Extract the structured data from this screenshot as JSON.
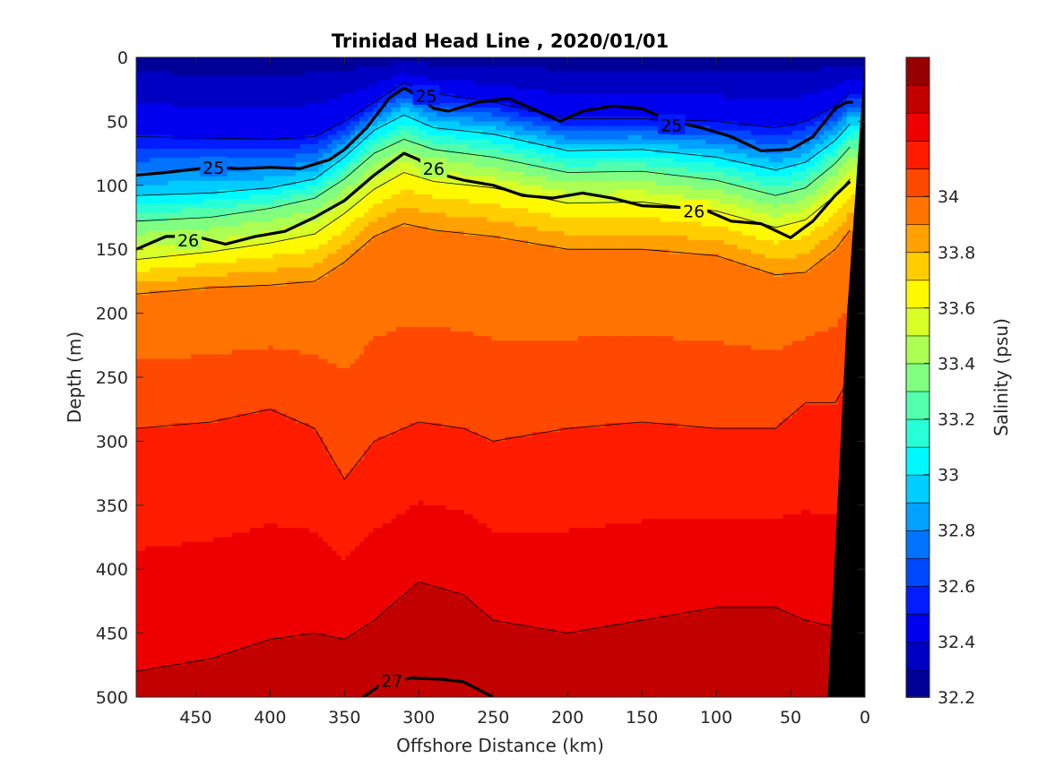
{
  "chart_data": {
    "type": "filled-contour",
    "title": "Trinidad Head Line , 2020/01/01",
    "xlabel": "Offshore Distance (km)",
    "ylabel": "Depth (m)",
    "xlim": [
      490,
      0
    ],
    "ylim": [
      0,
      500
    ],
    "x_reversed": true,
    "y_reversed": true,
    "xticks": [
      "450",
      "400",
      "350",
      "300",
      "250",
      "200",
      "150",
      "100",
      "50",
      "0"
    ],
    "yticks": [
      "0",
      "50",
      "100",
      "150",
      "200",
      "250",
      "300",
      "350",
      "400",
      "450",
      "500"
    ],
    "colorbar": {
      "label": "Salinity (psu)",
      "range": [
        32.2,
        34.5
      ],
      "step": 0.1,
      "ticks": [
        "32.2",
        "32.4",
        "32.6",
        "32.8",
        "33",
        "33.2",
        "33.4",
        "33.6",
        "33.8",
        "34"
      ],
      "colormap": "jet"
    },
    "salinity_isohalines": [
      {
        "level": 32.5,
        "x": [
          490,
          440,
          400,
          370,
          350,
          330,
          310,
          290,
          250,
          200,
          150,
          100,
          60,
          40,
          20,
          10
        ],
        "depth": [
          62,
          63,
          64,
          62,
          50,
          35,
          20,
          28,
          35,
          48,
          48,
          50,
          55,
          50,
          38,
          28
        ]
      },
      {
        "level": 33.0,
        "x": [
          490,
          440,
          400,
          370,
          350,
          330,
          310,
          290,
          250,
          200,
          150,
          100,
          60,
          40,
          20,
          10
        ],
        "depth": [
          108,
          106,
          102,
          95,
          78,
          57,
          45,
          55,
          60,
          73,
          72,
          78,
          88,
          82,
          65,
          52
        ]
      },
      {
        "level": 33.3,
        "x": [
          490,
          440,
          400,
          370,
          350,
          330,
          310,
          290,
          250,
          200,
          150,
          100,
          60,
          40,
          20,
          10
        ],
        "depth": [
          128,
          125,
          118,
          110,
          95,
          75,
          64,
          72,
          78,
          90,
          89,
          96,
          108,
          102,
          83,
          70
        ]
      },
      {
        "level": 33.6,
        "x": [
          490,
          440,
          400,
          370,
          350,
          330,
          310,
          290,
          250,
          200,
          150,
          100,
          60,
          40,
          20,
          10
        ],
        "depth": [
          158,
          152,
          145,
          138,
          122,
          103,
          90,
          97,
          102,
          114,
          113,
          120,
          133,
          127,
          108,
          95
        ]
      },
      {
        "level": 33.9,
        "x": [
          490,
          440,
          400,
          370,
          350,
          330,
          310,
          290,
          250,
          200,
          150,
          100,
          60,
          40,
          20,
          10
        ],
        "depth": [
          185,
          180,
          178,
          175,
          160,
          140,
          130,
          135,
          140,
          150,
          150,
          155,
          170,
          168,
          150,
          135
        ]
      },
      {
        "level": 34.1,
        "x": [
          490,
          440,
          400,
          370,
          350,
          330,
          300,
          270,
          250,
          200,
          150,
          100,
          60,
          40,
          20,
          10
        ],
        "depth": [
          290,
          285,
          275,
          290,
          330,
          300,
          285,
          290,
          300,
          290,
          285,
          290,
          290,
          270,
          270,
          250
        ]
      },
      {
        "level": 34.3,
        "x": [
          490,
          440,
          400,
          370,
          350,
          330,
          300,
          270,
          250,
          200,
          150,
          100,
          60,
          40,
          20,
          10
        ],
        "depth": [
          480,
          470,
          455,
          450,
          455,
          440,
          410,
          420,
          440,
          450,
          440,
          430,
          430,
          440,
          445,
          440
        ]
      }
    ],
    "density_contours": [
      {
        "label": "25",
        "x": [
          490,
          470,
          440,
          420,
          400,
          380,
          360,
          350,
          335,
          320,
          310,
          300,
          290,
          280,
          260,
          240,
          220,
          205,
          190,
          170,
          150,
          130,
          110,
          90,
          70,
          50,
          35,
          20,
          12,
          8
        ],
        "depth": [
          92,
          90,
          86,
          87,
          86,
          87,
          80,
          72,
          55,
          32,
          24,
          30,
          40,
          42,
          35,
          32,
          42,
          50,
          42,
          38,
          40,
          50,
          55,
          62,
          73,
          72,
          62,
          40,
          35,
          35
        ],
        "label_x": 438,
        "label_depth": 86
      },
      {
        "label": "26",
        "x": [
          490,
          470,
          450,
          430,
          410,
          390,
          370,
          350,
          330,
          310,
          300,
          290,
          270,
          250,
          230,
          210,
          190,
          170,
          150,
          130,
          110,
          90,
          70,
          50,
          35,
          20,
          10
        ],
        "depth": [
          150,
          140,
          140,
          146,
          140,
          136,
          125,
          112,
          92,
          75,
          80,
          90,
          96,
          100,
          108,
          110,
          106,
          110,
          116,
          117,
          118,
          128,
          130,
          141,
          128,
          108,
          97
        ],
        "label_x": 455,
        "label_depth": 143
      },
      {
        "label": "27",
        "x": [
          340,
          325,
          305,
          285,
          270,
          250
        ],
        "depth": [
          502,
          490,
          485,
          486,
          488,
          500
        ],
        "label_x": 318,
        "label_depth": 487
      }
    ],
    "contour_label_positions": [
      {
        "label": "25",
        "x": 295,
        "depth": 30
      },
      {
        "label": "25",
        "x": 130,
        "depth": 53
      },
      {
        "label": "26",
        "x": 290,
        "depth": 87
      },
      {
        "label": "26",
        "x": 115,
        "depth": 120
      }
    ],
    "bathymetry": {
      "x": [
        0,
        0,
        25,
        12
      ],
      "depth": [
        0,
        500,
        500,
        200
      ]
    }
  }
}
